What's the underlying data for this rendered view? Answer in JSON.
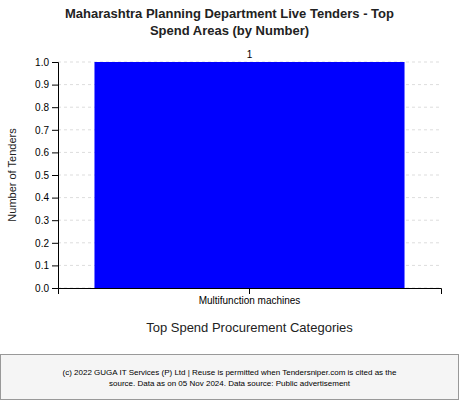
{
  "chart_data": {
    "type": "bar",
    "title": "Maharashtra Planning Department Live Tenders - Top\nSpend Areas (by Number)",
    "categories": [
      "Multifunction machines"
    ],
    "values": [
      1
    ],
    "color": "#0000FF",
    "xlabel": "Top Spend Procurement Categories",
    "ylabel": "Number of Tenders",
    "ylim": [
      0.0,
      1.0
    ],
    "yticks": [
      {
        "value": 0.0,
        "label": "0.0"
      },
      0.1,
      0.2,
      0.3,
      0.4,
      0.5,
      0.6,
      0.7,
      0.8,
      0.9,
      {
        "value": 1.0,
        "label": "1.0"
      }
    ],
    "grid": true,
    "data_labels": true,
    "annotations": [
      "(c) 2022 GUGA IT Services (P) Ltd | Reuse is permitted when Tendersniper.com is cited as the\nsource. Data as on 05 Nov 2024. Data source: Public advertisement"
    ]
  }
}
